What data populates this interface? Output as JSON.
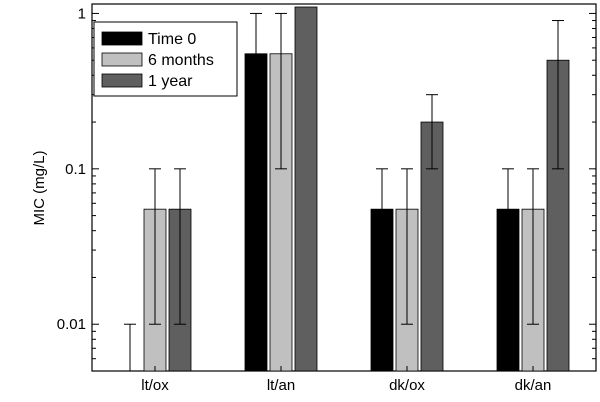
{
  "chart_data": {
    "type": "bar",
    "title": "",
    "xlabel": "",
    "ylabel": "MIC (mg/L)",
    "yscale": "log",
    "ylim": [
      0.005,
      1.15
    ],
    "yticks": [
      {
        "value": 0.01,
        "label": "0.01"
      },
      {
        "value": 0.1,
        "label": "0.1"
      },
      {
        "value": 1,
        "label": "1"
      }
    ],
    "categories": [
      "lt/ox",
      "lt/an",
      "dk/ox",
      "dk/an"
    ],
    "series": [
      {
        "name": "Time 0",
        "color": "#000000",
        "values": [
          0.005,
          0.55,
          0.055,
          0.055
        ],
        "err_low": [
          null,
          0.01,
          0.01,
          0.01
        ],
        "err_high": [
          0.01,
          1.0,
          0.1,
          0.1
        ]
      },
      {
        "name": "6 months",
        "color": "#c0c0c0",
        "values": [
          0.055,
          0.55,
          0.055,
          0.055
        ],
        "err_low": [
          0.01,
          0.1,
          0.01,
          0.01
        ],
        "err_high": [
          0.1,
          1.0,
          0.1,
          0.1
        ]
      },
      {
        "name": "1 year",
        "color": "#5f5f5f",
        "values": [
          0.055,
          1.1,
          0.2,
          0.5
        ],
        "err_low": [
          0.01,
          null,
          0.1,
          0.1
        ],
        "err_high": [
          0.1,
          null,
          0.3,
          0.9
        ]
      }
    ],
    "legend": {
      "position": "top-left"
    },
    "grid": false
  }
}
